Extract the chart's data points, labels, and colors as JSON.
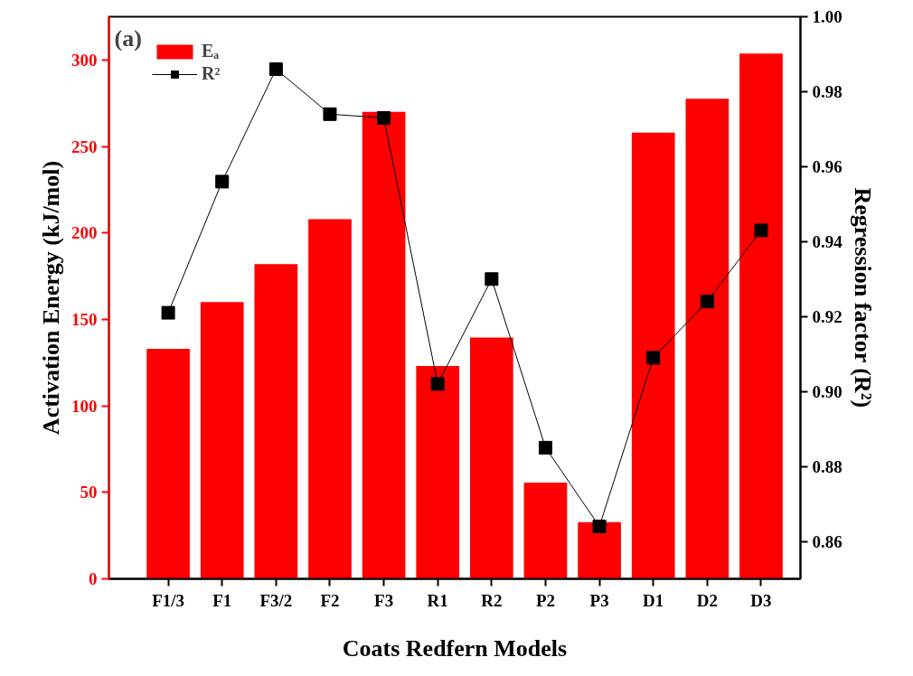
{
  "chart_data": {
    "type": "bar",
    "xlabel": "Coats Redfern Models",
    "ylabel": "Activation Energy (kJ/mol)",
    "y2label": "Regression factor (R²)",
    "categories": [
      "F1/3",
      "F1",
      "F3/2",
      "F2",
      "F3",
      "R1",
      "R2",
      "P2",
      "P3",
      "D1",
      "D2",
      "D3"
    ],
    "series": [
      {
        "name": "Eₐ",
        "color": "#ff0000",
        "values": [
          133,
          160,
          182,
          208,
          270,
          123,
          139.5,
          55.6,
          32.8,
          258,
          277.6,
          303.7
        ]
      },
      {
        "name": "R²",
        "type": "line",
        "axis": "y2",
        "color": "#000000",
        "marker": "square",
        "values": [
          0.921,
          0.956,
          0.986,
          0.974,
          0.973,
          0.902,
          0.93,
          0.885,
          0.864,
          0.909,
          0.924,
          0.943
        ]
      }
    ],
    "ylim": [
      0,
      325
    ],
    "yticks": [
      0,
      50,
      100,
      150,
      200,
      250,
      300
    ],
    "y2lim": [
      0.85,
      1.0
    ],
    "y2ticks": [
      {
        "value": 0.86,
        "label": "0.86"
      },
      {
        "value": 0.88,
        "label": "0.88"
      },
      {
        "value": 0.9,
        "label": "0.90"
      },
      {
        "value": 0.92,
        "label": "0.92"
      },
      {
        "value": 0.94,
        "label": "0.94"
      },
      {
        "value": 0.96,
        "label": "0.96"
      },
      {
        "value": 0.98,
        "label": "0.98"
      },
      {
        "value": 1.0,
        "label": "1.00"
      }
    ],
    "grid": false,
    "legend": "top left",
    "annotations": [
      "(a)"
    ]
  }
}
